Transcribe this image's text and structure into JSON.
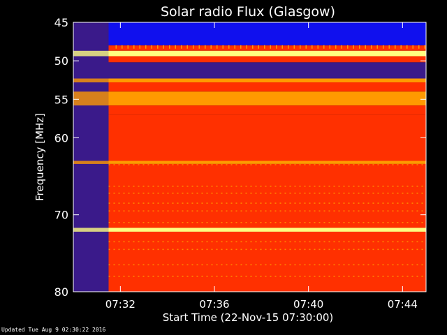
{
  "chart_data": {
    "type": "heatmap",
    "title": "Solar radio Flux (Glasgow)",
    "xlabel": "Start Time (22-Nov-15 07:30:00)",
    "ylabel": "Frequency [MHz]",
    "x_unit": "minutes after 07:30:00",
    "xlim": [
      0,
      15
    ],
    "ylim": [
      45,
      80
    ],
    "y_ticks": [
      "45",
      "50",
      "55",
      "60",
      "70",
      "80"
    ],
    "x_ticks": [
      {
        "minute": 2,
        "label": "07:32"
      },
      {
        "minute": 6,
        "label": "07:36"
      },
      {
        "minute": 10,
        "label": "07:40"
      },
      {
        "minute": 14,
        "label": "07:44"
      }
    ],
    "colors": {
      "low": "#3a1a8a",
      "blue": "#1010ee",
      "mid": "#ff3000",
      "high": "#ff9a00",
      "peak": "#ffff80"
    },
    "data_start_minute": 1.5,
    "bands": [
      {
        "from": 45,
        "to": 48.0,
        "level": "blue"
      },
      {
        "from": 48.0,
        "to": 48.7,
        "level": "mid"
      },
      {
        "from": 48.7,
        "to": 49.4,
        "level": "peak"
      },
      {
        "from": 49.4,
        "to": 50.2,
        "level": "mid"
      },
      {
        "from": 50.2,
        "to": 52.3,
        "level": "low"
      },
      {
        "from": 52.3,
        "to": 52.8,
        "level": "high"
      },
      {
        "from": 52.8,
        "to": 54.0,
        "level": "mid"
      },
      {
        "from": 54.0,
        "to": 55.8,
        "level": "high"
      },
      {
        "from": 55.8,
        "to": 57.0,
        "level": "mid"
      },
      {
        "from": 57.0,
        "to": 63.0,
        "level": "mid"
      },
      {
        "from": 63.0,
        "to": 63.4,
        "level": "high"
      },
      {
        "from": 63.4,
        "to": 71.7,
        "level": "mid"
      },
      {
        "from": 71.7,
        "to": 72.2,
        "level": "peak"
      },
      {
        "from": 72.2,
        "to": 80,
        "level": "mid"
      }
    ],
    "striation_rows": [
      63.5,
      66.3,
      67.2,
      68.5,
      69.5,
      71.0,
      73.5,
      74.5,
      76.5,
      78.0
    ],
    "grid": false,
    "legend": "none"
  },
  "footer": "Updated Tue Aug  9 02:30:22 2016"
}
